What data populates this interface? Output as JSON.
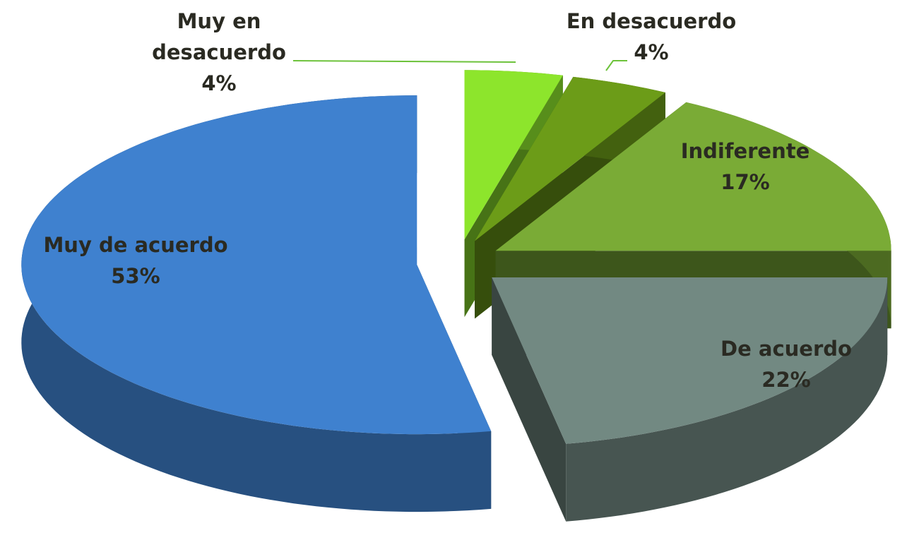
{
  "chart_data": {
    "type": "pie",
    "categories": [
      "Muy en desacuerdo",
      "En desacuerdo",
      "Indiferente",
      "De acuerdo",
      "Muy de acuerdo"
    ],
    "values": [
      4,
      4,
      17,
      22,
      53
    ],
    "value_labels": [
      "4%",
      "4%",
      "17%",
      "22%",
      "53%"
    ],
    "colors": [
      "#8de52c",
      "#6c9c18",
      "#7aab36",
      "#728982",
      "#3f81cf"
    ]
  }
}
